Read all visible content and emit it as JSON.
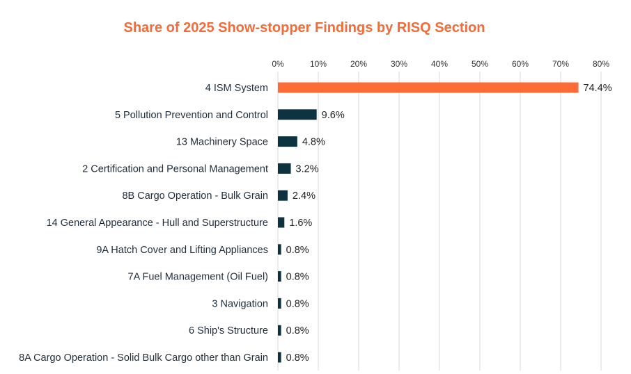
{
  "chart_data": {
    "type": "bar",
    "orientation": "horizontal",
    "title": "Share of 2025 Show-stopper Findings by RISQ Section",
    "xlabel": "",
    "ylabel": "",
    "xlim": [
      0,
      80
    ],
    "x_ticks": [
      "0%",
      "10%",
      "20%",
      "30%",
      "40%",
      "50%",
      "60%",
      "70%",
      "80%"
    ],
    "x_tick_values": [
      0,
      10,
      20,
      30,
      40,
      50,
      60,
      70,
      80
    ],
    "grid": true,
    "legend": "none",
    "categories": [
      "4 ISM System",
      "5 Pollution Prevention and Control",
      "13 Machinery Space",
      "2 Certification and Personal Management",
      "8B Cargo Operation - Bulk Grain",
      "14 General Appearance - Hull and Superstructure",
      "9A Hatch Cover and Lifting Appliances",
      "7A Fuel Management (Oil Fuel)",
      "3 Navigation",
      "6 Ship's Structure",
      "8A Cargo Operation - Solid Bulk Cargo other than Grain"
    ],
    "values": [
      74.4,
      9.6,
      4.8,
      3.2,
      2.4,
      1.6,
      0.8,
      0.8,
      0.8,
      0.8,
      0.8
    ],
    "value_labels": [
      "74.4%",
      "9.6%",
      "4.8%",
      "3.2%",
      "2.4%",
      "1.6%",
      "0.8%",
      "0.8%",
      "0.8%",
      "0.8%",
      "0.8%"
    ],
    "colors": {
      "title": "#F26B38",
      "highlight_bar": "#FF6B35",
      "bar": "#0D3340",
      "grid": "#D9D9D9"
    }
  }
}
